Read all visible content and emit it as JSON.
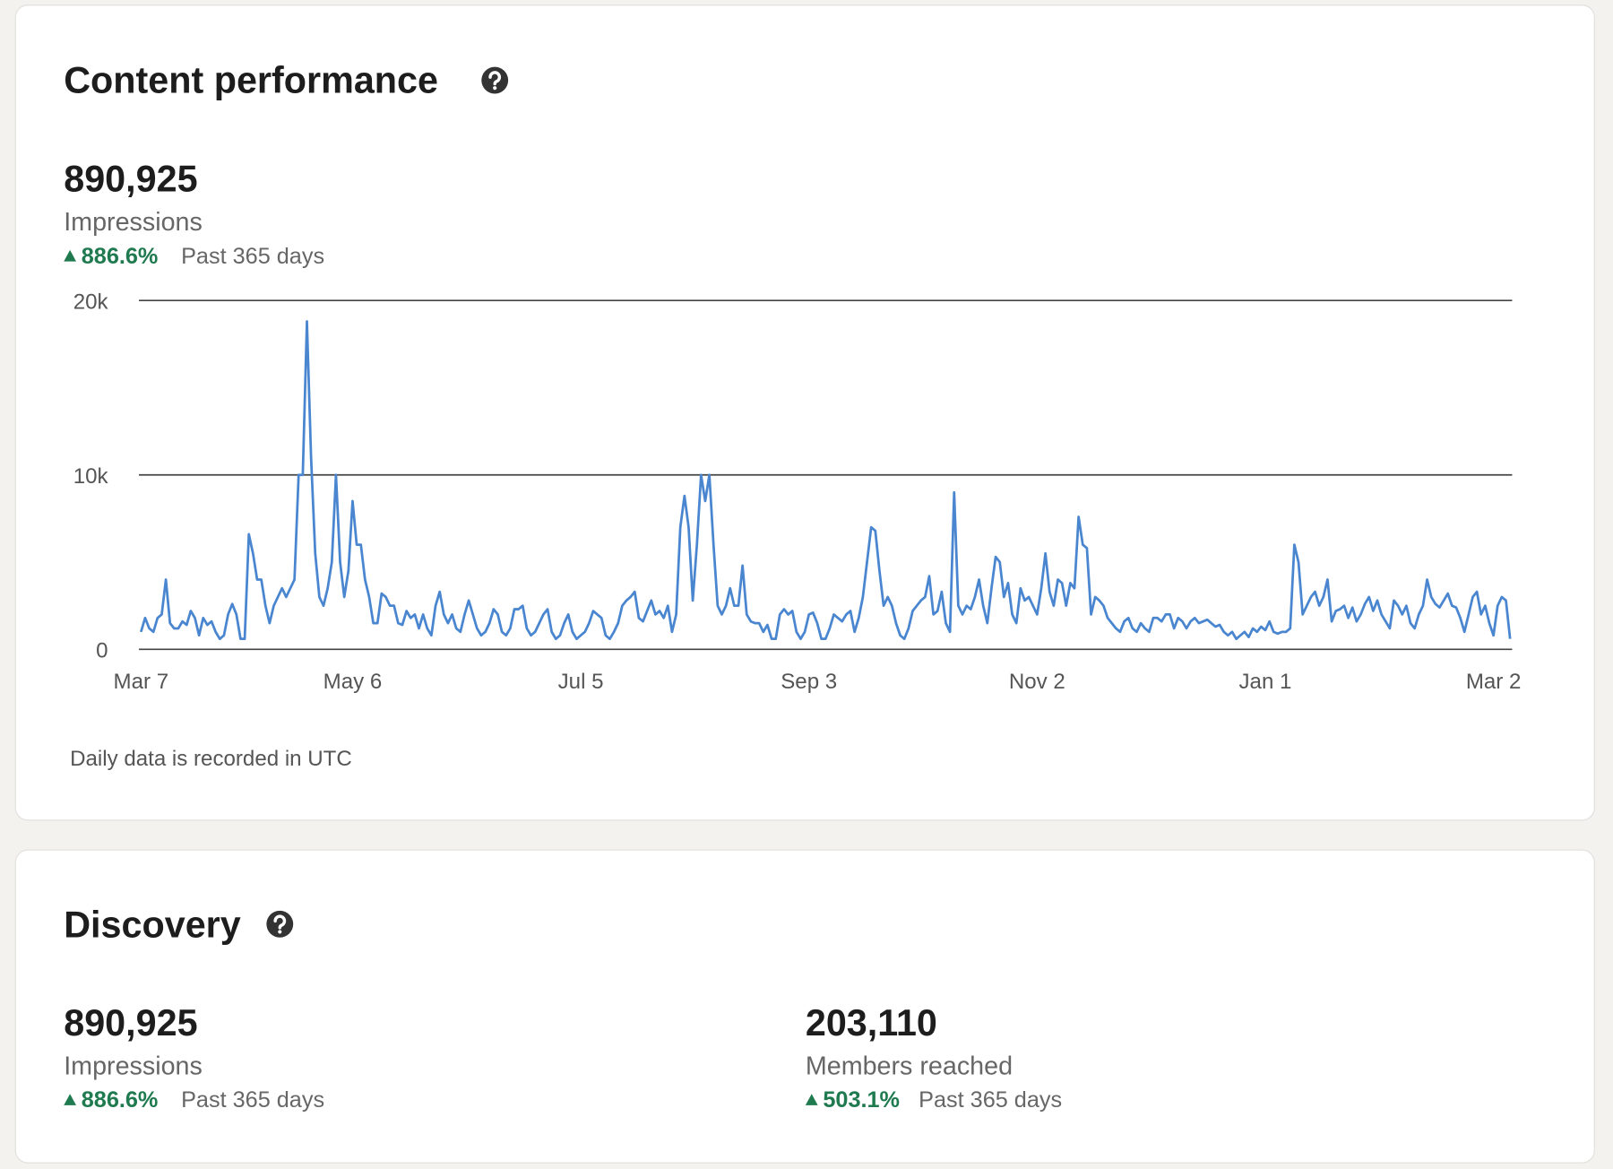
{
  "content_performance": {
    "title": "Content performance",
    "metric": {
      "value": "890,925",
      "label": "Impressions",
      "change": "886.6%",
      "period": "Past 365 days"
    },
    "note": "Daily data is recorded in UTC"
  },
  "chart_data": {
    "type": "line",
    "color": "#4a86d0",
    "grid": true,
    "ylim": [
      0,
      20000
    ],
    "yticks": [
      0,
      {
        "value": 10000,
        "label": "10k"
      },
      {
        "value": 20000,
        "label": "20k"
      }
    ],
    "categories": [
      "Mar 7",
      null,
      null,
      null,
      null,
      null,
      null,
      null,
      null,
      null,
      null,
      null,
      null,
      null,
      null,
      null,
      null,
      null,
      null,
      null,
      null,
      null,
      null,
      null,
      null,
      null,
      null,
      null,
      null,
      null,
      null,
      null,
      null,
      null,
      null,
      null,
      null,
      null,
      null,
      null,
      null,
      null,
      null,
      null,
      null,
      null,
      null,
      null,
      null,
      null,
      null,
      "May 6",
      null,
      null,
      null,
      null,
      null,
      null,
      null,
      null,
      null,
      null,
      null,
      null,
      null,
      null,
      null,
      null,
      null,
      null,
      null,
      null,
      null,
      null,
      null,
      null,
      null,
      null,
      null,
      null,
      null,
      null,
      null,
      null,
      null,
      null,
      null,
      null,
      null,
      null,
      null,
      null,
      null,
      null,
      null,
      null,
      null,
      null,
      null,
      null,
      null,
      null,
      null,
      null,
      null,
      null,
      "Jul 5",
      null,
      null,
      null,
      null,
      null,
      null,
      null,
      null,
      null,
      null,
      null,
      null,
      null,
      null,
      null,
      null,
      null,
      null,
      null,
      null,
      null,
      null,
      null,
      null,
      null,
      null,
      null,
      null,
      null,
      null,
      null,
      null,
      null,
      null,
      null,
      null,
      null,
      null,
      null,
      null,
      null,
      null,
      null,
      null,
      null,
      null,
      null,
      null,
      null,
      null,
      null,
      null,
      null,
      null,
      "Sep 3",
      null,
      null,
      null,
      null,
      null,
      null,
      null,
      null,
      null,
      null,
      null,
      null,
      null,
      null,
      null,
      null,
      null,
      null,
      null,
      null,
      null,
      null,
      null,
      null,
      null,
      null,
      null,
      null,
      null,
      null,
      null,
      null,
      null,
      null,
      null,
      null,
      null,
      null,
      null,
      null,
      null,
      null,
      null,
      null,
      null,
      null,
      null,
      null,
      null,
      null,
      null,
      null,
      null,
      null,
      "Nov 2",
      null,
      null,
      null,
      null,
      null,
      null,
      null,
      null,
      null,
      null,
      null,
      null,
      null,
      null,
      null,
      null,
      null,
      null,
      null,
      null,
      null,
      null,
      null,
      null,
      null,
      null,
      null,
      null,
      null,
      null,
      null,
      null,
      null,
      null,
      null,
      null,
      null,
      null,
      null,
      null,
      null,
      null,
      null,
      null,
      null,
      null,
      null,
      null,
      null,
      null,
      null,
      null,
      null,
      null,
      "Jan 1",
      null,
      null,
      null,
      null,
      null,
      null,
      null,
      null,
      null,
      null,
      null,
      null,
      null,
      null,
      null,
      null,
      null,
      null,
      null,
      null,
      null,
      null,
      null,
      null,
      null,
      null,
      null,
      null,
      null,
      null,
      null,
      null,
      null,
      null,
      null,
      null,
      null,
      null,
      null,
      null,
      null,
      null,
      null,
      null,
      null,
      null,
      null,
      null,
      null,
      null,
      null,
      null,
      null,
      null,
      "Mar 2",
      null,
      null,
      null,
      null
    ],
    "values": [
      1000,
      1800,
      1200,
      1000,
      1800,
      2000,
      4000,
      1500,
      1200,
      1200,
      1600,
      1400,
      2200,
      1800,
      800,
      1800,
      1400,
      1600,
      1000,
      600,
      800,
      2000,
      2600,
      2000,
      600,
      600,
      6600,
      5500,
      4000,
      4000,
      2500,
      1500,
      2500,
      3000,
      3500,
      3000,
      3500,
      4000,
      10000,
      10000,
      18800,
      11000,
      5500,
      3000,
      2500,
      3500,
      5000,
      10000,
      5000,
      3000,
      4500,
      8500,
      6000,
      6000,
      4000,
      3000,
      1500,
      1500,
      3200,
      3000,
      2500,
      2500,
      1500,
      1400,
      2200,
      1800,
      2000,
      1200,
      2000,
      1200,
      800,
      2500,
      3300,
      2000,
      1500,
      2000,
      1200,
      1000,
      2000,
      2800,
      2000,
      1200,
      800,
      1000,
      1500,
      2300,
      2000,
      1000,
      800,
      1200,
      2300,
      2300,
      2500,
      1200,
      800,
      1000,
      1500,
      2000,
      2300,
      1000,
      600,
      800,
      1500,
      2000,
      1000,
      600,
      800,
      1000,
      1500,
      2200,
      2000,
      1800,
      800,
      600,
      1000,
      1500,
      2500,
      2800,
      3000,
      3300,
      1800,
      1600,
      2200,
      2800,
      2000,
      2200,
      1800,
      2500,
      1000,
      2000,
      7000,
      8800,
      7000,
      2800,
      6000,
      10000,
      8500,
      10000,
      6000,
      2500,
      2000,
      2500,
      3500,
      2500,
      2500,
      4800,
      2000,
      1600,
      1500,
      1500,
      1000,
      1400,
      600,
      600,
      2000,
      2300,
      2000,
      2200,
      1000,
      600,
      1000,
      2000,
      2100,
      1500,
      600,
      600,
      1200,
      2000,
      1800,
      1600,
      2000,
      2200,
      1000,
      1800,
      3000,
      5000,
      7000,
      6800,
      4500,
      2500,
      3000,
      2500,
      1500,
      800,
      600,
      1200,
      2200,
      2500,
      2800,
      3000,
      4200,
      2000,
      2200,
      3300,
      1500,
      1000,
      9000,
      2500,
      2000,
      2500,
      2300,
      3000,
      4000,
      2500,
      1500,
      3500,
      5300,
      5000,
      3000,
      3800,
      2000,
      1500,
      3500,
      2800,
      3000,
      2500,
      2000,
      3500,
      5500,
      3300,
      2500,
      4000,
      3800,
      2500,
      3800,
      3500,
      7600,
      6000,
      5800,
      2000,
      3000,
      2800,
      2500,
      1800,
      1500,
      1200,
      1000,
      1600,
      1800,
      1200,
      1000,
      1500,
      1200,
      1000,
      1800,
      1800,
      1600,
      2000,
      2000,
      1200,
      1800,
      1600,
      1200,
      1600,
      1800,
      1500,
      1600,
      1700,
      1500,
      1300,
      1400,
      1000,
      800,
      1000,
      600,
      800,
      1000,
      700,
      1200,
      1000,
      1300,
      1100,
      1600,
      1000,
      900,
      1000,
      1000,
      1200,
      6000,
      5000,
      2000,
      2500,
      3000,
      3300,
      2500,
      3000,
      4000,
      1600,
      2200,
      2300,
      2500,
      1800,
      2400,
      1600,
      2000,
      2600,
      3000,
      2200,
      2800,
      2000,
      1600,
      1200,
      2800,
      2500,
      2000,
      2500,
      1500,
      1200,
      2000,
      2500,
      4000,
      3000,
      2600,
      2400,
      2800,
      3200,
      2500,
      2400,
      1800,
      1000,
      2000,
      3000,
      3300,
      2000,
      2500,
      1500,
      800,
      2500,
      3000,
      2800,
      600
    ]
  },
  "discovery": {
    "title": "Discovery",
    "metrics": [
      {
        "value": "890,925",
        "label": "Impressions",
        "change": "886.6%",
        "period": "Past 365 days"
      },
      {
        "value": "203,110",
        "label": "Members reached",
        "change": "503.1%",
        "period": "Past 365 days"
      }
    ]
  }
}
